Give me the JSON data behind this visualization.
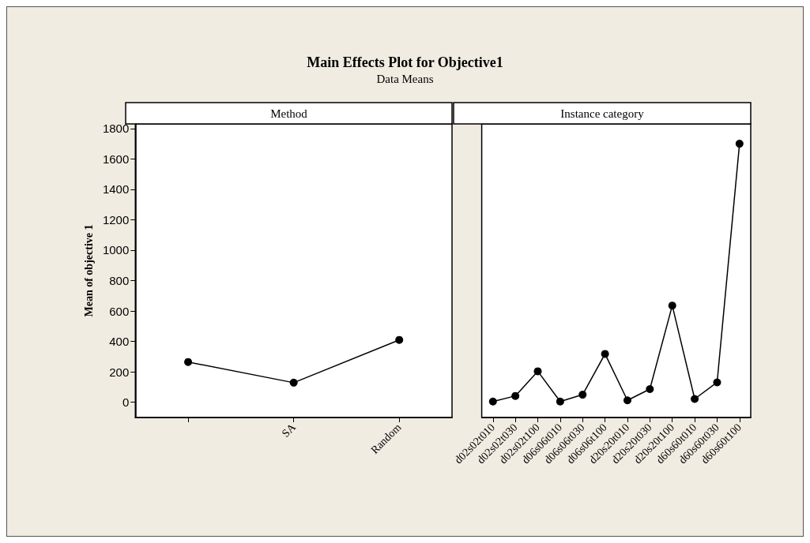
{
  "chart_data": [
    {
      "type": "line",
      "title": "Main Effects Plot for Objective1",
      "subtitle": "Data Means",
      "ylabel": "Mean of objective 1",
      "annotations": [
        "Method"
      ],
      "categories": [
        null,
        "SA",
        "Random"
      ],
      "series": [
        {
          "color": "#000000",
          "values": [
            265,
            129,
            410
          ]
        }
      ],
      "ylim": [
        -100,
        1830
      ],
      "yticks": [
        0,
        200,
        400,
        600,
        800,
        1000,
        1200,
        1400,
        1600,
        1800
      ],
      "marker": "circle",
      "line_style": "solid"
    },
    {
      "type": "line",
      "annotations": [
        "Instance category"
      ],
      "categories": [
        "d02s02t010",
        "d02s02t030",
        "d02s02t100",
        "d06s06t010",
        "d06s06t030",
        "d06s06t100",
        "d20s20t010",
        "d20s20t030",
        "d20s20t100",
        "d60s60t010",
        "d60s60t030",
        "d60s60t100"
      ],
      "series": [
        {
          "color": "#000000",
          "values": [
            5,
            42,
            204,
            5,
            50,
            318,
            13,
            87,
            636,
            22,
            131,
            1700
          ]
        }
      ],
      "ylim": [
        -100,
        1830
      ],
      "yticks": [
        0,
        200,
        400,
        600,
        800,
        1000,
        1200,
        1400,
        1600,
        1800
      ],
      "tick_labels": "x",
      "marker": "circle",
      "line_style": "solid"
    }
  ]
}
